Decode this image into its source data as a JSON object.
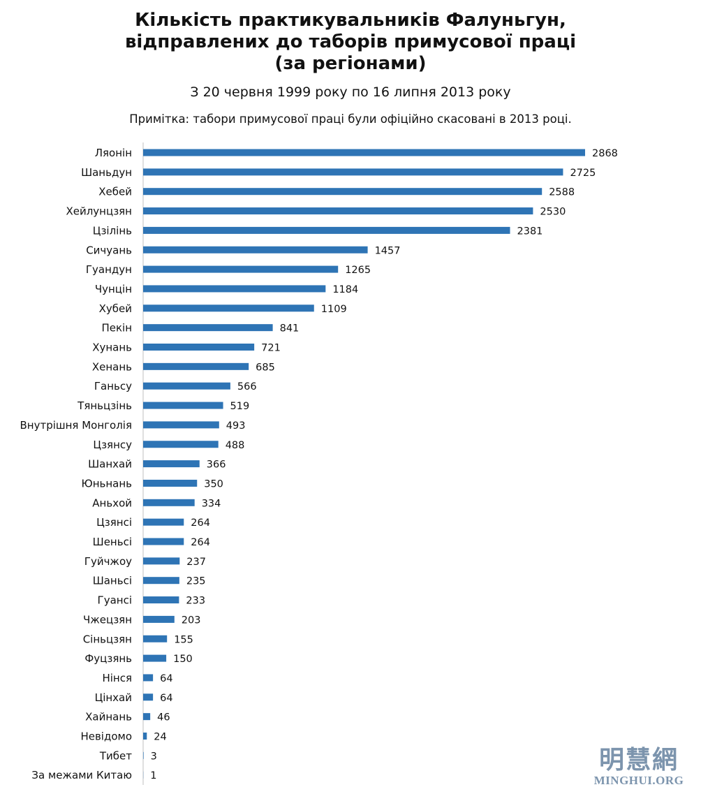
{
  "header": {
    "title_line1": "Кількість практикувальників Фалуньгун,",
    "title_line2": "відправлених до таборів примусової праці",
    "title_line3": "(за регіонами)",
    "subtitle": "З 20 червня 1999 року по 16 липня 2013 року",
    "note": "Примітка: табори примусової праці були офіційно скасовані в 2013 році."
  },
  "logo": {
    "chinese": "明慧網",
    "english": "MINGHUI.ORG"
  },
  "colors": {
    "bar": "#2e74b5",
    "axis": "#bfbfbf"
  },
  "chart_data": {
    "type": "bar",
    "orientation": "horizontal",
    "title": "Кількість практикувальників Фалуньгун, відправлених до таборів примусової праці (за регіонами)",
    "subtitle": "З 20 червня 1999 року по 16 липня 2013 року",
    "categories": [
      "Ляонін",
      "Шаньдун",
      "Хебей",
      "Хейлунцзян",
      "Цзілінь",
      "Сичуань",
      "Гуандун",
      "Чунцін",
      "Хубей",
      "Пекін",
      "Хунань",
      "Хенань",
      "Ганьсу",
      "Тяньцзінь",
      "Внутрішня Монголія",
      "Цзянсу",
      "Шанхай",
      "Юньнань",
      "Аньхой",
      "Цзянсі",
      "Шеньсі",
      "Гуйчжоу",
      "Шаньсі",
      "Гуансі",
      "Чжецзян",
      "Сіньцзян",
      "Фуцзянь",
      "Нінся",
      "Цінхай",
      "Хайнань",
      "Невідомо",
      "Тибет",
      "За межами Китаю"
    ],
    "values": [
      2868,
      2725,
      2588,
      2530,
      2381,
      1457,
      1265,
      1184,
      1109,
      841,
      721,
      685,
      566,
      519,
      493,
      488,
      366,
      350,
      334,
      264,
      264,
      237,
      235,
      233,
      203,
      155,
      150,
      64,
      64,
      46,
      24,
      3,
      1
    ],
    "data_labels": true,
    "grid": false,
    "legend": "none"
  }
}
